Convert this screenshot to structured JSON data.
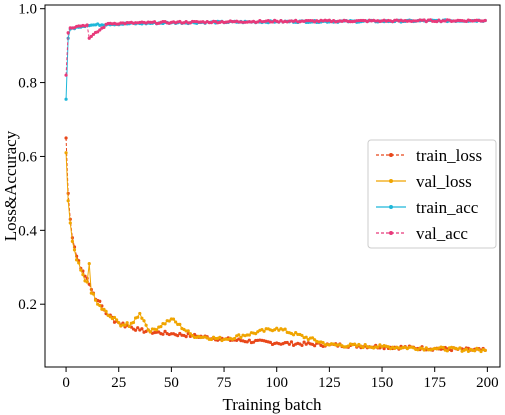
{
  "chart_data": {
    "type": "line",
    "xlabel": "Training batch",
    "ylabel": "Loss&Accuracy",
    "xlim": [
      -10,
      206
    ],
    "ylim": [
      0.03,
      1.01
    ],
    "xticks": [
      0,
      25,
      50,
      75,
      100,
      125,
      150,
      175,
      200
    ],
    "yticks": [
      0.2,
      0.4,
      0.6,
      0.8,
      1.0
    ],
    "ytick_labels": [
      "0.2",
      "0.4",
      "0.6",
      "0.8",
      "1.0"
    ],
    "grid": false,
    "legend_position": "center-right",
    "n_points": 200,
    "series": [
      {
        "name": "train_loss",
        "color": "#e8471a",
        "line_style": "dashed",
        "description_points": {
          "x": [
            0,
            1,
            2,
            3,
            5,
            8,
            10,
            12,
            15,
            20,
            25,
            30,
            35,
            40,
            50,
            60,
            75,
            100,
            125,
            150,
            175,
            199
          ],
          "y": [
            0.65,
            0.5,
            0.43,
            0.38,
            0.33,
            0.29,
            0.27,
            0.24,
            0.21,
            0.17,
            0.15,
            0.14,
            0.13,
            0.125,
            0.12,
            0.115,
            0.105,
            0.095,
            0.09,
            0.085,
            0.08,
            0.075
          ]
        }
      },
      {
        "name": "val_loss",
        "color": "#f0a500",
        "line_style": "solid",
        "description_points": {
          "x": [
            0,
            1,
            2,
            3,
            5,
            8,
            10,
            11,
            12,
            15,
            20,
            25,
            30,
            35,
            40,
            50,
            60,
            75,
            100,
            125,
            150,
            175,
            199
          ],
          "y": [
            0.61,
            0.48,
            0.42,
            0.37,
            0.32,
            0.28,
            0.26,
            0.31,
            0.23,
            0.2,
            0.17,
            0.15,
            0.14,
            0.175,
            0.125,
            0.16,
            0.115,
            0.105,
            0.135,
            0.09,
            0.085,
            0.08,
            0.075
          ]
        }
      },
      {
        "name": "train_acc",
        "color": "#1fb7d9",
        "line_style": "solid",
        "description_points": {
          "x": [
            0,
            1,
            2,
            5,
            10,
            20,
            50,
            100,
            150,
            199
          ],
          "y": [
            0.755,
            0.92,
            0.945,
            0.95,
            0.955,
            0.958,
            0.962,
            0.965,
            0.966,
            0.968
          ]
        }
      },
      {
        "name": "val_acc",
        "color": "#e8397a",
        "line_style": "dashed",
        "description_points": {
          "x": [
            0,
            1,
            2,
            5,
            10,
            11,
            20,
            50,
            100,
            150,
            199
          ],
          "y": [
            0.82,
            0.935,
            0.948,
            0.952,
            0.956,
            0.92,
            0.96,
            0.963,
            0.966,
            0.967,
            0.968
          ]
        }
      }
    ]
  }
}
